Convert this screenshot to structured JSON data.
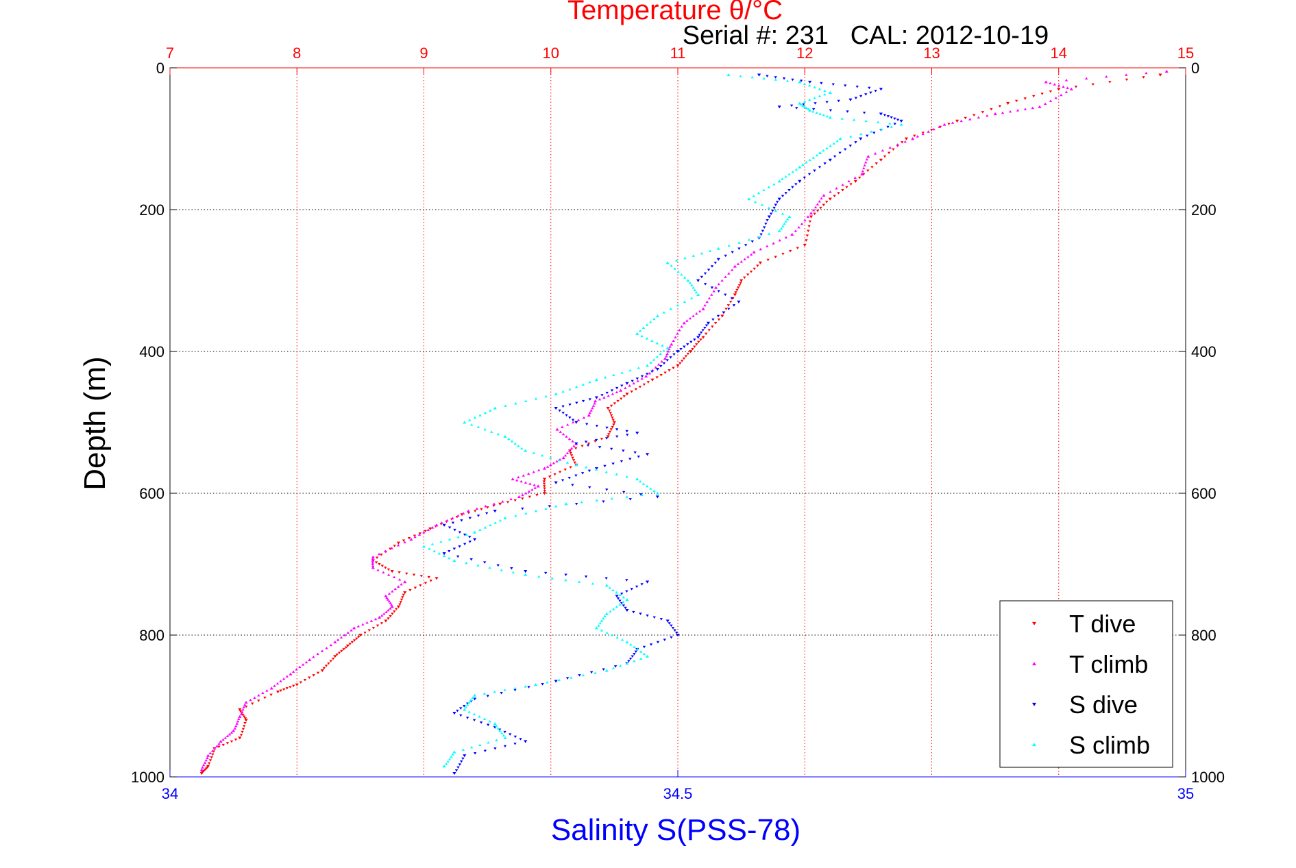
{
  "chart_data": {
    "type": "scatter",
    "top_title": "Temperature θ/°C",
    "subtitle": "Serial #: 231   CAL: 2012-10-19",
    "ylabel": "Depth (m)",
    "xlabel_bottom": "Salinity S(PSS-78)",
    "ylim": [
      0,
      1000
    ],
    "y_reversed": true,
    "x_top": {
      "lim": [
        7,
        15
      ],
      "ticks": [
        "7",
        "8",
        "9",
        "10",
        "11",
        "12",
        "13",
        "14",
        "15"
      ],
      "color": "#ff0000"
    },
    "x_bottom": {
      "lim": [
        34,
        35
      ],
      "ticks": [
        "34",
        "34.5",
        "35"
      ],
      "color": "#0000ff"
    },
    "y_ticks_left": [
      "0",
      "200",
      "400",
      "600",
      "800",
      "1000"
    ],
    "y_ticks_right": [
      "0",
      "200",
      "400",
      "600",
      "800",
      "1000"
    ],
    "grid": true,
    "legend_position": "bottom-right",
    "series": [
      {
        "name": "T dive",
        "axis": "top",
        "color": "#ff0000",
        "marker": "triangle-down",
        "points": [
          [
            14.8,
            10
          ],
          [
            14.0,
            30
          ],
          [
            13.6,
            50
          ],
          [
            13.2,
            75
          ],
          [
            12.8,
            100
          ],
          [
            12.6,
            130
          ],
          [
            12.4,
            160
          ],
          [
            12.2,
            185
          ],
          [
            12.05,
            210
          ],
          [
            12.0,
            250
          ],
          [
            11.65,
            275
          ],
          [
            11.5,
            300
          ],
          [
            11.45,
            320
          ],
          [
            11.35,
            350
          ],
          [
            11.2,
            380
          ],
          [
            11.1,
            400
          ],
          [
            11.0,
            420
          ],
          [
            10.8,
            440
          ],
          [
            10.6,
            460
          ],
          [
            10.45,
            480
          ],
          [
            10.5,
            500
          ],
          [
            10.45,
            520
          ],
          [
            10.15,
            540
          ],
          [
            10.2,
            560
          ],
          [
            9.95,
            580
          ],
          [
            9.95,
            600
          ],
          [
            9.6,
            615
          ],
          [
            9.3,
            630
          ],
          [
            9.05,
            650
          ],
          [
            8.8,
            670
          ],
          [
            8.6,
            695
          ],
          [
            8.75,
            710
          ],
          [
            9.1,
            720
          ],
          [
            8.85,
            740
          ],
          [
            8.8,
            760
          ],
          [
            8.7,
            780
          ],
          [
            8.5,
            800
          ],
          [
            8.4,
            815
          ],
          [
            8.3,
            830
          ],
          [
            8.2,
            850
          ],
          [
            8.0,
            870
          ],
          [
            7.85,
            880
          ],
          [
            7.55,
            905
          ],
          [
            7.6,
            920
          ],
          [
            7.55,
            945
          ],
          [
            7.35,
            960
          ],
          [
            7.3,
            985
          ],
          [
            7.25,
            995
          ]
        ]
      },
      {
        "name": "T climb",
        "axis": "top",
        "color": "#ff00ff",
        "marker": "triangle-up",
        "points": [
          [
            14.85,
            5
          ],
          [
            13.9,
            20
          ],
          [
            14.1,
            30
          ],
          [
            13.85,
            55
          ],
          [
            13.5,
            65
          ],
          [
            13.1,
            80
          ],
          [
            12.85,
            100
          ],
          [
            12.5,
            125
          ],
          [
            12.45,
            150
          ],
          [
            12.15,
            180
          ],
          [
            12.05,
            205
          ],
          [
            11.9,
            235
          ],
          [
            11.6,
            260
          ],
          [
            11.45,
            280
          ],
          [
            11.3,
            310
          ],
          [
            11.2,
            340
          ],
          [
            11.05,
            360
          ],
          [
            10.95,
            390
          ],
          [
            10.9,
            410
          ],
          [
            10.75,
            435
          ],
          [
            10.55,
            455
          ],
          [
            10.35,
            470
          ],
          [
            10.3,
            490
          ],
          [
            10.05,
            510
          ],
          [
            10.2,
            530
          ],
          [
            10.1,
            550
          ],
          [
            9.95,
            565
          ],
          [
            9.7,
            580
          ],
          [
            9.9,
            590
          ],
          [
            9.75,
            605
          ],
          [
            9.35,
            625
          ],
          [
            9.1,
            645
          ],
          [
            8.9,
            665
          ],
          [
            8.6,
            690
          ],
          [
            8.6,
            705
          ],
          [
            8.85,
            725
          ],
          [
            8.7,
            745
          ],
          [
            8.75,
            760
          ],
          [
            8.65,
            775
          ],
          [
            8.45,
            790
          ],
          [
            8.3,
            810
          ],
          [
            8.1,
            835
          ],
          [
            7.95,
            855
          ],
          [
            7.8,
            875
          ],
          [
            7.6,
            895
          ],
          [
            7.55,
            915
          ],
          [
            7.5,
            935
          ],
          [
            7.4,
            950
          ],
          [
            7.3,
            970
          ],
          [
            7.25,
            990
          ]
        ]
      },
      {
        "name": "S dive",
        "axis": "bottom",
        "color": "#0000ff",
        "marker": "triangle-down",
        "points": [
          [
            34.58,
            10
          ],
          [
            34.63,
            20
          ],
          [
            34.7,
            30
          ],
          [
            34.67,
            45
          ],
          [
            34.6,
            55
          ],
          [
            34.7,
            65
          ],
          [
            34.72,
            75
          ],
          [
            34.68,
            100
          ],
          [
            34.65,
            130
          ],
          [
            34.62,
            160
          ],
          [
            34.6,
            185
          ],
          [
            34.59,
            210
          ],
          [
            34.58,
            240
          ],
          [
            34.54,
            270
          ],
          [
            34.52,
            300
          ],
          [
            34.56,
            330
          ],
          [
            34.53,
            360
          ],
          [
            34.52,
            380
          ],
          [
            34.5,
            400
          ],
          [
            34.48,
            425
          ],
          [
            34.45,
            445
          ],
          [
            34.42,
            465
          ],
          [
            34.38,
            480
          ],
          [
            34.4,
            500
          ],
          [
            34.46,
            515
          ],
          [
            34.4,
            530
          ],
          [
            34.47,
            545
          ],
          [
            34.42,
            565
          ],
          [
            34.38,
            585
          ],
          [
            34.48,
            605
          ],
          [
            34.32,
            625
          ],
          [
            34.27,
            645
          ],
          [
            34.3,
            665
          ],
          [
            34.27,
            685
          ],
          [
            34.35,
            710
          ],
          [
            34.47,
            725
          ],
          [
            34.44,
            745
          ],
          [
            34.45,
            765
          ],
          [
            34.49,
            780
          ],
          [
            34.5,
            800
          ],
          [
            34.46,
            820
          ],
          [
            34.45,
            840
          ],
          [
            34.38,
            865
          ],
          [
            34.3,
            890
          ],
          [
            34.28,
            910
          ],
          [
            34.32,
            930
          ],
          [
            34.35,
            950
          ],
          [
            34.29,
            970
          ],
          [
            34.28,
            995
          ]
        ]
      },
      {
        "name": "S climb",
        "axis": "bottom",
        "color": "#00ffff",
        "marker": "triangle-up",
        "points": [
          [
            34.55,
            10
          ],
          [
            34.62,
            20
          ],
          [
            34.65,
            35
          ],
          [
            34.62,
            50
          ],
          [
            34.63,
            60
          ],
          [
            34.65,
            70
          ],
          [
            34.72,
            80
          ],
          [
            34.66,
            100
          ],
          [
            34.64,
            120
          ],
          [
            34.62,
            140
          ],
          [
            34.6,
            160
          ],
          [
            34.57,
            185
          ],
          [
            34.61,
            210
          ],
          [
            34.6,
            230
          ],
          [
            34.54,
            255
          ],
          [
            34.49,
            275
          ],
          [
            34.51,
            300
          ],
          [
            34.52,
            320
          ],
          [
            34.48,
            350
          ],
          [
            34.46,
            375
          ],
          [
            34.49,
            395
          ],
          [
            34.47,
            420
          ],
          [
            34.42,
            440
          ],
          [
            34.38,
            460
          ],
          [
            34.32,
            480
          ],
          [
            34.29,
            500
          ],
          [
            34.33,
            520
          ],
          [
            34.35,
            540
          ],
          [
            34.4,
            560
          ],
          [
            34.46,
            580
          ],
          [
            34.48,
            600
          ],
          [
            34.39,
            615
          ],
          [
            34.33,
            635
          ],
          [
            34.3,
            655
          ],
          [
            34.25,
            675
          ],
          [
            34.28,
            695
          ],
          [
            34.35,
            715
          ],
          [
            34.43,
            730
          ],
          [
            34.45,
            750
          ],
          [
            34.43,
            770
          ],
          [
            34.42,
            790
          ],
          [
            34.45,
            810
          ],
          [
            34.47,
            830
          ],
          [
            34.43,
            850
          ],
          [
            34.36,
            870
          ],
          [
            34.3,
            885
          ],
          [
            34.29,
            905
          ],
          [
            34.32,
            925
          ],
          [
            34.33,
            945
          ],
          [
            34.28,
            965
          ],
          [
            34.27,
            985
          ]
        ]
      }
    ]
  }
}
